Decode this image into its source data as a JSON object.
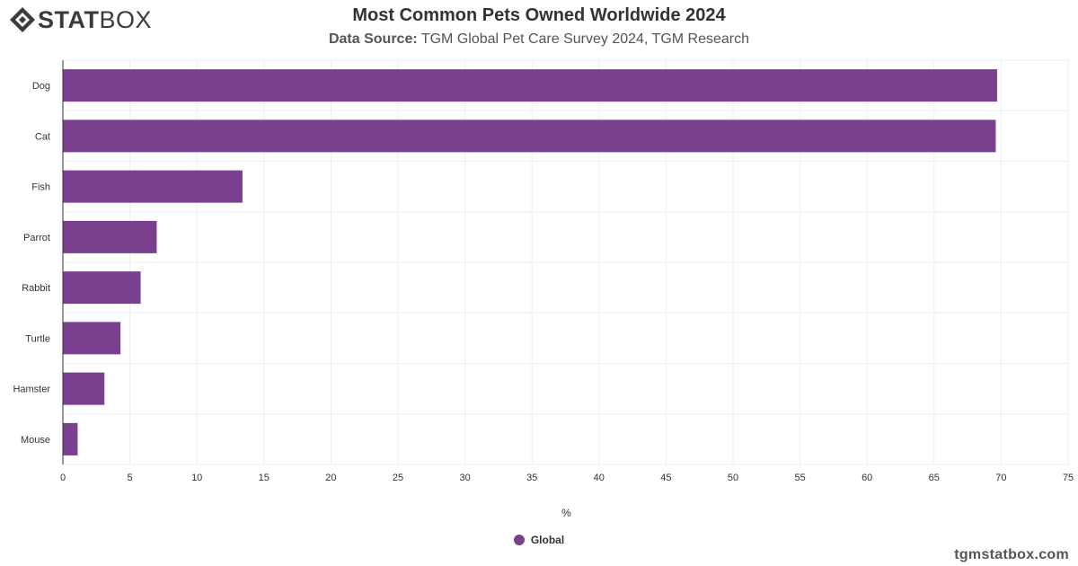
{
  "brand": {
    "logo_bold": "STAT",
    "logo_light": "BOX",
    "footer_url": "tgmstatbox.com"
  },
  "header": {
    "title": "Most Common Pets Owned Worldwide 2024",
    "subtitle_label": "Data Source:",
    "subtitle_text": "TGM Global Pet Care Survey 2024, TGM Research"
  },
  "colors": {
    "bar": "#7b3f8f",
    "grid": "#eeeeee",
    "axis": "#333333",
    "text": "#333333"
  },
  "chart_data": {
    "type": "bar",
    "orientation": "horizontal",
    "categories": [
      "Dog",
      "Cat",
      "Fish",
      "Parrot",
      "Rabbit",
      "Turtle",
      "Hamster",
      "Mouse"
    ],
    "series": [
      {
        "name": "Global",
        "values": [
          69.7,
          69.6,
          13.4,
          7.0,
          5.8,
          4.3,
          3.1,
          1.1
        ]
      }
    ],
    "xlabel": "%",
    "ylabel": "",
    "xlim": [
      0,
      75
    ],
    "xticks": [
      0,
      5,
      10,
      15,
      20,
      25,
      30,
      35,
      40,
      45,
      50,
      55,
      60,
      65,
      70,
      75
    ],
    "grid": true,
    "legend_position": "bottom-center"
  }
}
